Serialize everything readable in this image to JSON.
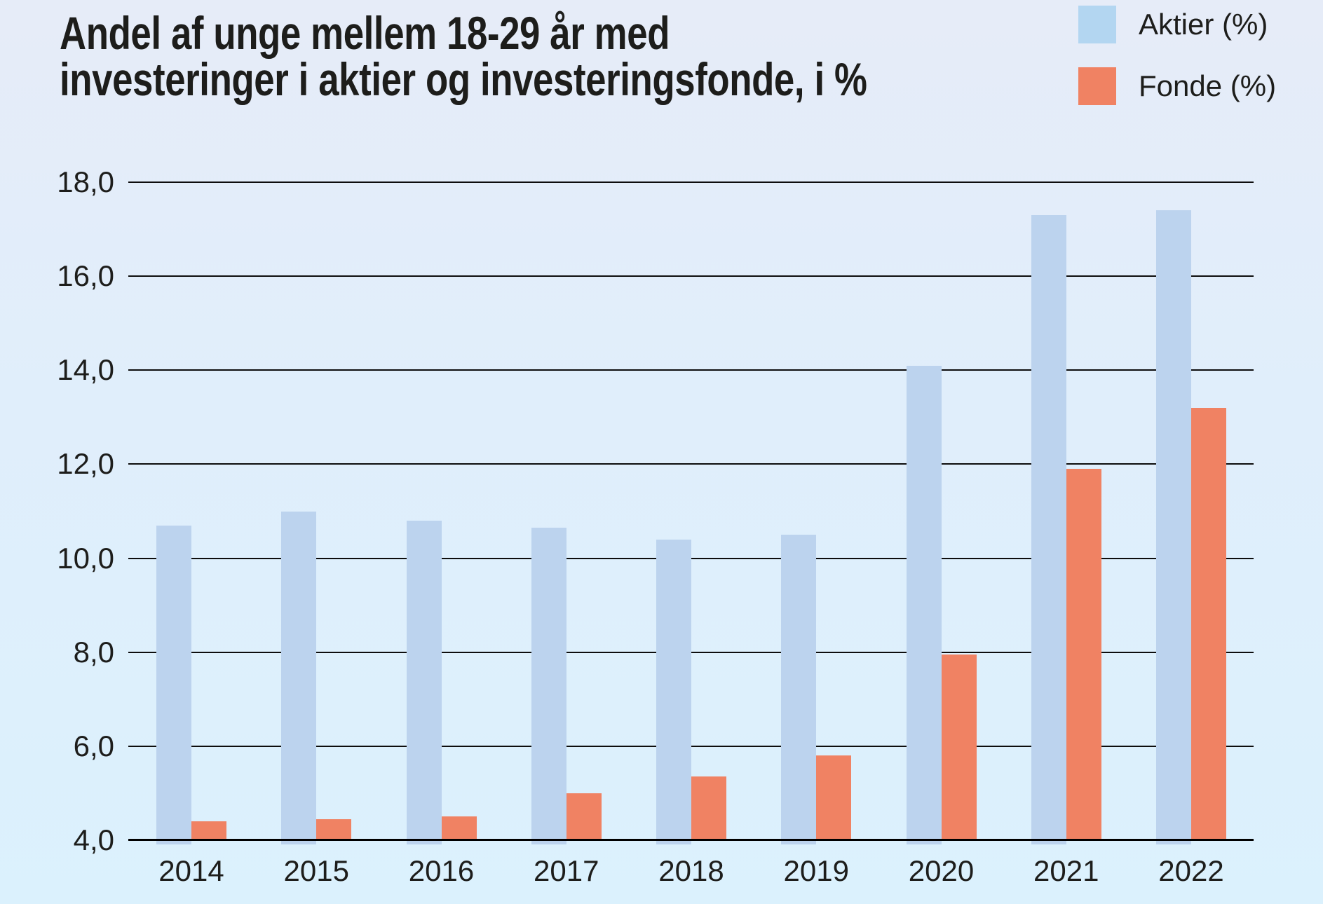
{
  "title": {
    "line1": "Andel af unge mellem 18-29 år med",
    "line2": "investeringer i aktier og investeringsfonde, i %"
  },
  "legend": {
    "items": [
      {
        "label": "Aktier (%)",
        "color": "#b3d6f1"
      },
      {
        "label": "Fonde (%)",
        "color": "#f08263"
      }
    ]
  },
  "colors": {
    "aktier_bar": "#bcd3ee",
    "fonde_bar": "#f08263",
    "gridline": "#0d0d0d",
    "text": "#1d1d1b",
    "background_top": "#e6ecf8",
    "background_bottom": "#dbf1fd"
  },
  "chart_data": {
    "type": "bar",
    "title": "Andel af unge mellem 18-29 år med investeringer i aktier og investeringsfonde, i %",
    "categories": [
      "2014",
      "2015",
      "2016",
      "2017",
      "2018",
      "2019",
      "2020",
      "2021",
      "2022"
    ],
    "series": [
      {
        "name": "Aktier (%)",
        "color": "#bcd3ee",
        "values": [
          10.7,
          11.0,
          10.8,
          10.65,
          10.4,
          10.5,
          14.1,
          17.3,
          17.4
        ]
      },
      {
        "name": "Fonde (%)",
        "color": "#f08263",
        "values": [
          4.4,
          4.45,
          4.5,
          5.0,
          5.35,
          5.8,
          7.95,
          11.9,
          13.2
        ]
      }
    ],
    "xlabel": "",
    "ylabel": "",
    "ylim": [
      4.0,
      18.0
    ],
    "ytick_step": 2.0,
    "ytick_labels": [
      "4,0",
      "6,0",
      "8,0",
      "10,0",
      "12,0",
      "14,0",
      "16,0",
      "18,0"
    ],
    "grid": true,
    "legend_position": "top-right",
    "decimal_separator": ","
  }
}
